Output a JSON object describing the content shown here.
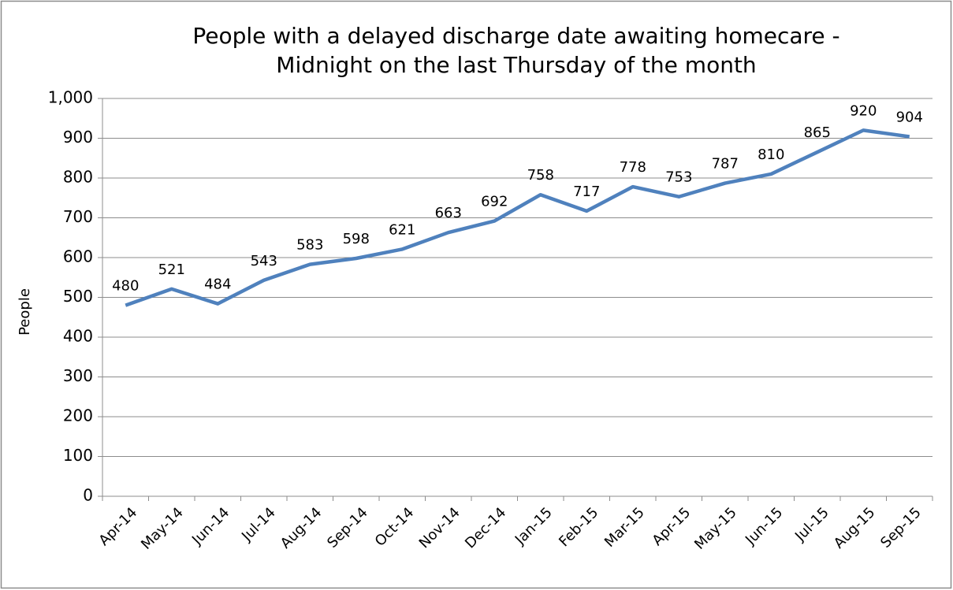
{
  "chart_data": {
    "type": "line",
    "title": [
      "People with a delayed discharge date awaiting homecare -",
      "Midnight on the last Thursday of the month"
    ],
    "y_label": "People",
    "categories": [
      "Apr-14",
      "May-14",
      "Jun-14",
      "Jul-14",
      "Aug-14",
      "Sep-14",
      "Oct-14",
      "Nov-14",
      "Dec-14",
      "Jan-15",
      "Feb-15",
      "Mar-15",
      "Apr-15",
      "May-15",
      "Jun-15",
      "Jul-15",
      "Aug-15",
      "Sep-15"
    ],
    "series": [
      {
        "name": "People",
        "color": "#4f81bd",
        "values": [
          480,
          521,
          484,
          543,
          583,
          598,
          621,
          663,
          692,
          758,
          717,
          778,
          753,
          787,
          810,
          865,
          920,
          904
        ]
      }
    ],
    "ylim": [
      0,
      1000
    ],
    "yticks": [
      0,
      100,
      200,
      300,
      400,
      500,
      600,
      700,
      800,
      900,
      {
        "value": 1000,
        "label": "1,000"
      }
    ],
    "grid": true
  }
}
